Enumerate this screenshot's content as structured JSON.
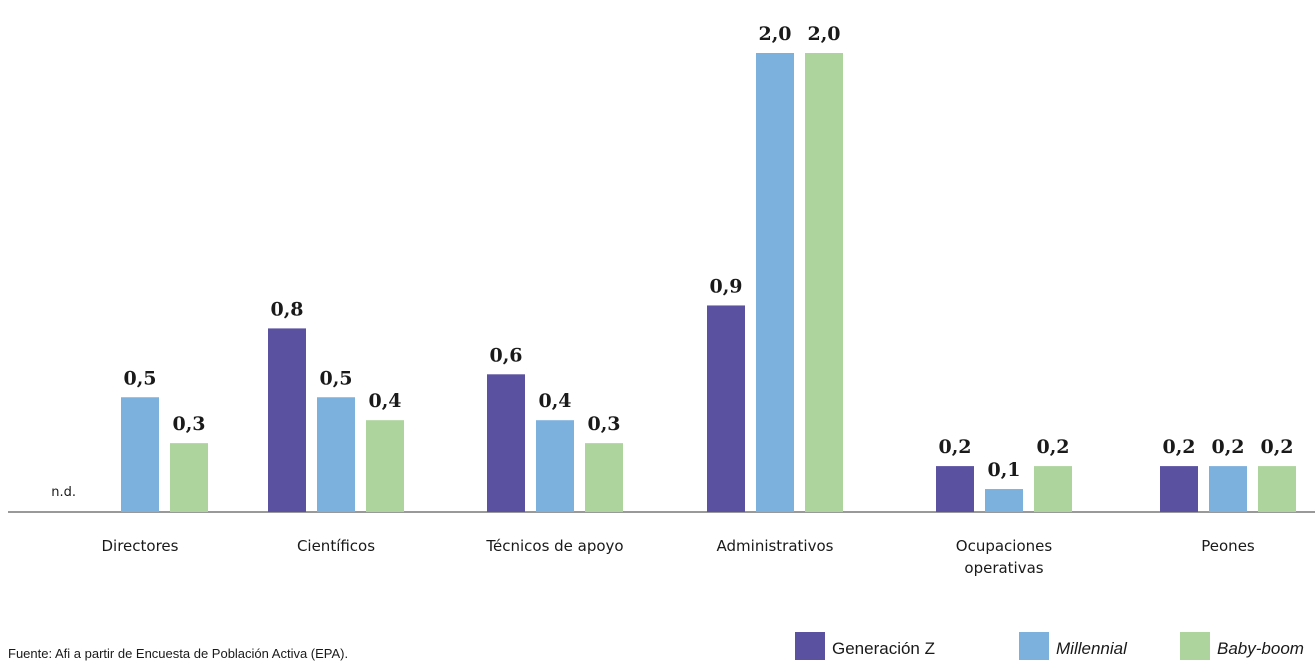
{
  "chart_data": {
    "type": "bar",
    "categories": [
      "Directores",
      "Científicos",
      "Técnicos de apoyo",
      "Administrativos",
      "Ocupaciones operativas",
      "Peones"
    ],
    "category_lines": [
      [
        "Directores"
      ],
      [
        "Científicos"
      ],
      [
        "Técnicos de apoyo"
      ],
      [
        "Administrativos"
      ],
      [
        "Ocupaciones",
        "operativas"
      ],
      [
        "Peones"
      ]
    ],
    "series": [
      {
        "name": "Generación Z",
        "color": "#5a52a1",
        "values": [
          null,
          0.8,
          0.6,
          0.9,
          0.2,
          0.2
        ],
        "labels": [
          "n.d.",
          "0,8",
          "0,6",
          "0,9",
          "0,2",
          "0,2"
        ],
        "italic": false
      },
      {
        "name": "Millennial",
        "color": "#7db1dd",
        "values": [
          0.5,
          0.5,
          0.4,
          2.0,
          0.1,
          0.2
        ],
        "labels": [
          "0,5",
          "0,5",
          "0,4",
          "2,0",
          "0,1",
          "0,2"
        ],
        "italic": true
      },
      {
        "name": "Baby-boom",
        "color": "#acd49c",
        "values": [
          0.3,
          0.4,
          0.3,
          2.0,
          0.2,
          0.2
        ],
        "labels": [
          "0,3",
          "0,4",
          "0,3",
          "2,0",
          "0,2",
          "0,2"
        ],
        "italic": true
      }
    ],
    "ylim": [
      0,
      2.0
    ],
    "grid": false,
    "legend_position": "bottom-right"
  },
  "source": "Fuente: Afi a partir de Encuesta de Población Activa (EPA)."
}
